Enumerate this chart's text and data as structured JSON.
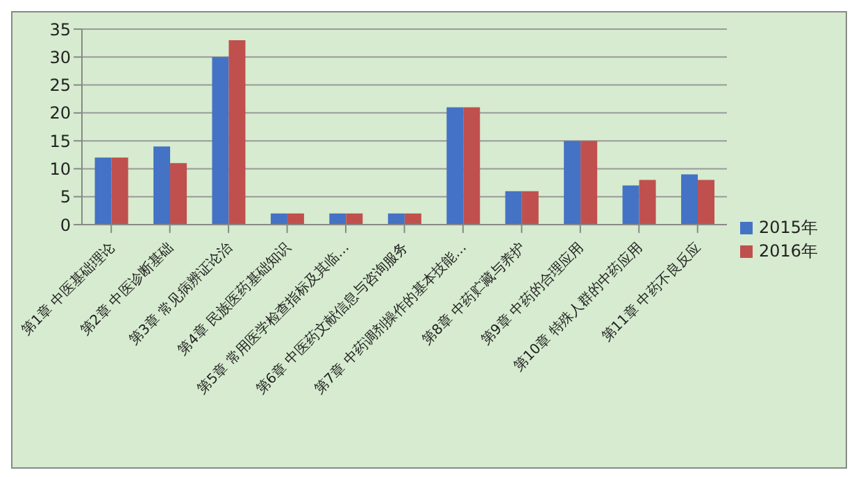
{
  "chart_data": {
    "type": "bar",
    "categories": [
      "第1章 中医基础理论",
      "第2章 中医诊断基础",
      "第3章 常见病辨证论治",
      "第4章 民族医药基础知识",
      "第5章 常用医学检查指标及其临…",
      "第6章 中医药文献信息与咨询服务",
      "第7章 中药调剂操作的基本技能…",
      "第8章 中药贮藏与养护",
      "第9章 中药的合理应用",
      "第10章 特殊人群的中药应用",
      "第11章 中药不良反应"
    ],
    "series": [
      {
        "name": "2015年",
        "color": "#4472c4",
        "values": [
          12,
          14,
          30,
          2,
          2,
          2,
          21,
          6,
          15,
          7,
          9
        ]
      },
      {
        "name": "2016年",
        "color": "#c0504d",
        "values": [
          12,
          11,
          33,
          2,
          2,
          2,
          21,
          6,
          15,
          8,
          8
        ]
      }
    ],
    "ylim": [
      0,
      35
    ],
    "yticks": [
      0,
      5,
      10,
      15,
      20,
      25,
      30,
      35
    ],
    "grid": "y",
    "legend": "right"
  }
}
